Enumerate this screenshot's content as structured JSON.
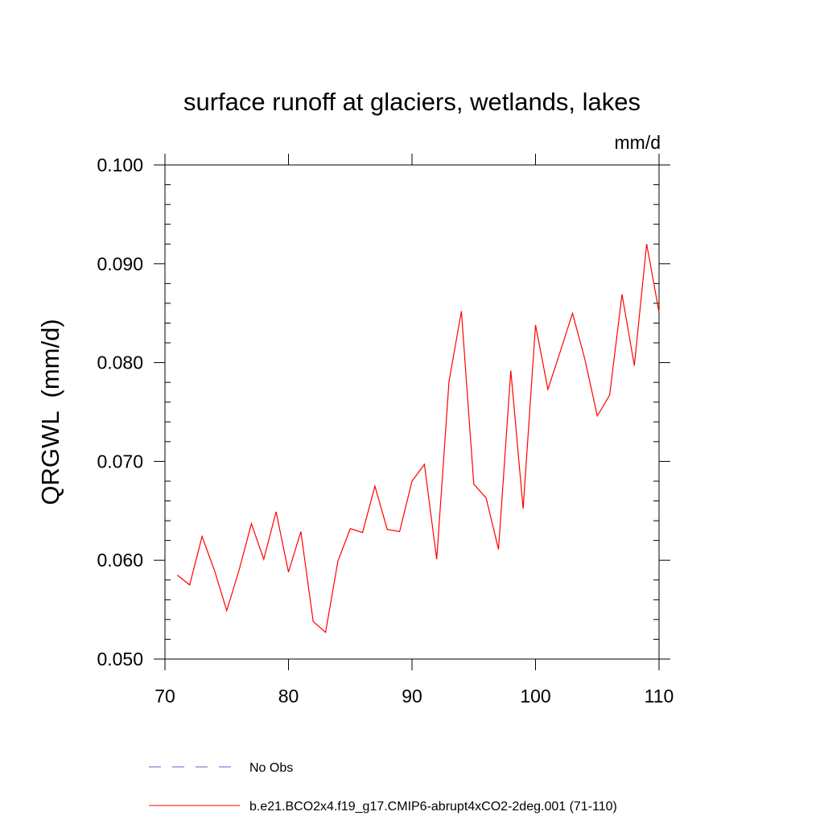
{
  "chart_data": {
    "type": "line",
    "title": "surface runoff at glaciers, wetlands, lakes",
    "units": "mm/d",
    "ylabel": "QRGWL  (mm/d)",
    "xlabel": "",
    "xlim": [
      70,
      110
    ],
    "ylim": [
      0.05,
      0.1
    ],
    "x_ticks": [
      70,
      80,
      90,
      100,
      110
    ],
    "x_tick_labels": [
      "70",
      "80",
      "90",
      "100",
      "110"
    ],
    "y_ticks": [
      0.05,
      0.06,
      0.07,
      0.08,
      0.09,
      0.1
    ],
    "y_tick_labels": [
      "0.050",
      "0.060",
      "0.070",
      "0.080",
      "0.090",
      "0.100"
    ],
    "grid": false,
    "legend_position": "bottom",
    "series": [
      {
        "name": "b.e21.BCO2x4.f19_g17.CMIP6-abrupt4xCO2-2deg.001 (71-110)",
        "color": "#ff0000",
        "style": "solid",
        "x": [
          71,
          72,
          73,
          74,
          75,
          76,
          77,
          78,
          79,
          80,
          81,
          82,
          83,
          84,
          85,
          86,
          87,
          88,
          89,
          90,
          91,
          92,
          93,
          94,
          95,
          96,
          97,
          98,
          99,
          100,
          101,
          102,
          103,
          104,
          105,
          106,
          107,
          108,
          109,
          110
        ],
        "values": [
          0.0585,
          0.0575,
          0.0624,
          0.059,
          0.0549,
          0.059,
          0.0637,
          0.0601,
          0.0649,
          0.0588,
          0.0629,
          0.0538,
          0.0527,
          0.0599,
          0.0632,
          0.0628,
          0.0675,
          0.0631,
          0.0629,
          0.068,
          0.0697,
          0.0601,
          0.0781,
          0.0852,
          0.0677,
          0.0663,
          0.0611,
          0.0792,
          0.0652,
          0.0838,
          0.0773,
          0.0811,
          0.085,
          0.0803,
          0.0746,
          0.0767,
          0.0869,
          0.0797,
          0.092,
          0.0851
        ]
      }
    ],
    "legend": [
      {
        "label": "No Obs",
        "color": "#6a5acd",
        "style": "dashed"
      },
      {
        "label": "b.e21.BCO2x4.f19_g17.CMIP6-abrupt4xCO2-2deg.001 (71-110)",
        "color": "#ff0000",
        "style": "solid"
      }
    ]
  }
}
